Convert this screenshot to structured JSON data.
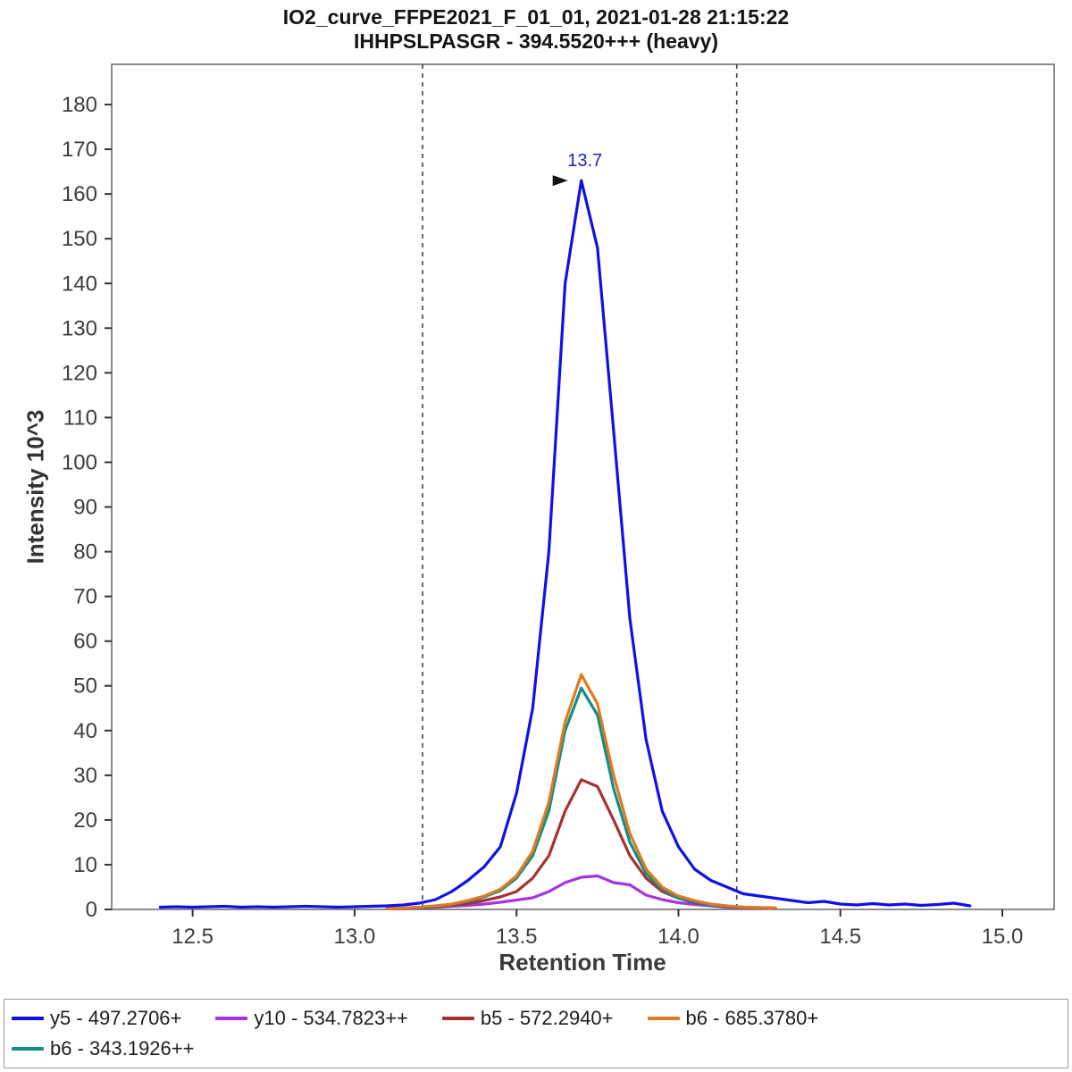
{
  "chart_data": {
    "type": "line",
    "title": "IO2_curve_FFPE2021_F_01_01, 2021-01-28 21:15:22",
    "subtitle": "IHHPSLPASGR - 394.5520+++ (heavy)",
    "xlabel": "Retention Time",
    "ylabel": "Intensity 10^3",
    "x_range": [
      12.25,
      15.16
    ],
    "y_range": [
      0,
      189
    ],
    "x_ticks": [
      "12.5",
      "13.0",
      "13.5",
      "14.0",
      "14.5",
      "15.0"
    ],
    "y_ticks": [
      0,
      10,
      20,
      30,
      40,
      50,
      60,
      70,
      80,
      90,
      100,
      110,
      120,
      130,
      140,
      150,
      160,
      170,
      180
    ],
    "integration_boundaries": [
      13.21,
      14.18
    ],
    "peak_annotation": {
      "label": "13.7",
      "x": 13.7,
      "y": 163,
      "color": "#2121c8"
    },
    "legend_wrap_after": 4,
    "series": [
      {
        "name": "y5 - 497.2706+",
        "color": "#1010e8",
        "x_start": 12.4,
        "x_step": 0.05,
        "values": [
          0.5,
          0.6,
          0.5,
          0.6,
          0.7,
          0.5,
          0.6,
          0.5,
          0.6,
          0.7,
          0.6,
          0.5,
          0.6,
          0.7,
          0.8,
          1.0,
          1.4,
          2.2,
          4.0,
          6.5,
          9.5,
          14,
          26,
          45,
          80,
          140,
          163,
          148,
          107,
          65,
          38,
          22,
          14,
          9,
          6.5,
          5,
          3.5,
          3,
          2.5,
          2,
          1.5,
          1.8,
          1.2,
          1,
          1.3,
          1,
          1.2,
          0.9,
          1.1,
          1.4,
          0.8
        ]
      },
      {
        "name": "y10 - 534.7823++",
        "color": "#a832e2",
        "x_start": 13.1,
        "x_step": 0.05,
        "values": [
          0.2,
          0.2,
          0.3,
          0.5,
          0.7,
          0.9,
          1.2,
          1.6,
          2.1,
          2.6,
          4,
          6,
          7.2,
          7.5,
          6,
          5.5,
          3.2,
          2.2,
          1.5,
          1.1,
          0.8,
          0.5,
          0.4,
          0.3,
          0.2
        ]
      },
      {
        "name": "b5 - 572.2940+",
        "color": "#a93030",
        "x_start": 13.1,
        "x_step": 0.05,
        "values": [
          0.2,
          0.2,
          0.4,
          0.6,
          0.9,
          1.3,
          2,
          2.8,
          4,
          7,
          12,
          22,
          29,
          27.5,
          20,
          12,
          7,
          4,
          2.5,
          1.5,
          1,
          0.6,
          0.5,
          0.4,
          0.3
        ]
      },
      {
        "name": "b6 - 685.3780+",
        "color": "#e2791e",
        "x_start": 13.1,
        "x_step": 0.05,
        "values": [
          0.2,
          0.3,
          0.5,
          0.8,
          1.2,
          2,
          3,
          4.5,
          7.5,
          13,
          24,
          42,
          52.5,
          46,
          30,
          17,
          9,
          5,
          3,
          2,
          1.2,
          0.8,
          0.5,
          0.4,
          0.3
        ]
      },
      {
        "name": "b6 - 343.1926++",
        "color": "#108f8a",
        "x_start": 13.1,
        "x_step": 0.05,
        "values": [
          0.2,
          0.3,
          0.4,
          0.7,
          1.1,
          1.8,
          2.8,
          4.2,
          7,
          12,
          22,
          40,
          49.5,
          43.5,
          27,
          15,
          8,
          4.5,
          2.5,
          1.7,
          1,
          0.7,
          0.5,
          0.4,
          0.3
        ]
      }
    ]
  }
}
